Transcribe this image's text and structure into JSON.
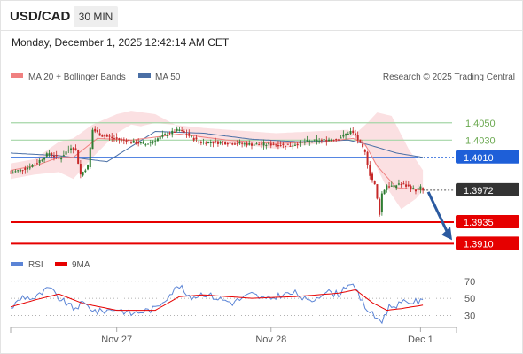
{
  "header": {
    "symbol": "USD/CAD",
    "timeframe": "30 MIN",
    "datetime": "Monday, December 1, 2025 12:42:14 AM CET"
  },
  "legend": {
    "ma20_label": "MA 20 + Bollinger Bands",
    "ma50_label": "MA 50",
    "credit": "Research © 2025 Trading Central",
    "rsi_label": "RSI",
    "ma9_label": "9MA"
  },
  "colors": {
    "ma20": "#f08080",
    "ma50": "#4a6fa5",
    "band": "#fadadd",
    "up_candle": "#2e7d32",
    "down_candle": "#c62828",
    "resistance": "#a5d6a7",
    "pivot": "#1e5fd8",
    "support": "#e60000",
    "last": "#333333",
    "arrow": "#2b5aa0",
    "rsi": "#5b84d6",
    "rsi_ma": "#e60000"
  },
  "chart_data": [
    {
      "type": "candlestick",
      "title": "USD/CAD 30 MIN",
      "x_ticks": [
        "Nov 27",
        "Nov 28",
        "Dec 1"
      ],
      "ylim": [
        1.3895,
        1.41
      ],
      "ohlc_anchors": [
        {
          "i": 0,
          "c": 1.3992
        },
        {
          "i": 6,
          "c": 1.3997
        },
        {
          "i": 10,
          "c": 1.4002
        },
        {
          "i": 16,
          "c": 1.4015
        },
        {
          "i": 20,
          "c": 1.4008
        },
        {
          "i": 25,
          "c": 1.4022
        },
        {
          "i": 27,
          "c": 1.4018
        },
        {
          "i": 29,
          "c": 1.399
        },
        {
          "i": 32,
          "c": 1.4
        },
        {
          "i": 34,
          "c": 1.4042
        },
        {
          "i": 38,
          "c": 1.4035
        },
        {
          "i": 46,
          "c": 1.403
        },
        {
          "i": 56,
          "c": 1.4025
        },
        {
          "i": 64,
          "c": 1.4036
        },
        {
          "i": 70,
          "c": 1.4042
        },
        {
          "i": 78,
          "c": 1.4028
        },
        {
          "i": 88,
          "c": 1.4027
        },
        {
          "i": 100,
          "c": 1.4025
        },
        {
          "i": 110,
          "c": 1.4025
        },
        {
          "i": 116,
          "c": 1.4024
        },
        {
          "i": 122,
          "c": 1.4028
        },
        {
          "i": 130,
          "c": 1.403
        },
        {
          "i": 136,
          "c": 1.4032
        },
        {
          "i": 141,
          "c": 1.404
        },
        {
          "i": 143,
          "c": 1.4035
        },
        {
          "i": 147,
          "c": 1.4015
        },
        {
          "i": 149,
          "c": 1.399
        },
        {
          "i": 151,
          "c": 1.3978
        },
        {
          "i": 153,
          "c": 1.3945
        },
        {
          "i": 154,
          "c": 1.3968
        },
        {
          "i": 156,
          "c": 1.3978
        },
        {
          "i": 159,
          "c": 1.3976
        },
        {
          "i": 161,
          "c": 1.398
        },
        {
          "i": 165,
          "c": 1.3976
        },
        {
          "i": 168,
          "c": 1.3972
        },
        {
          "i": 170,
          "c": 1.3975
        },
        {
          "i": 171,
          "c": 1.3972
        }
      ],
      "x_tick_index": [
        44,
        108,
        170
      ],
      "ma20": [
        [
          0,
          1.3995
        ],
        [
          10,
          1.4
        ],
        [
          20,
          1.401
        ],
        [
          26,
          1.401
        ],
        [
          36,
          1.4032
        ],
        [
          50,
          1.403
        ],
        [
          70,
          1.4037
        ],
        [
          90,
          1.403
        ],
        [
          110,
          1.4026
        ],
        [
          130,
          1.4028
        ],
        [
          142,
          1.4032
        ],
        [
          147,
          1.4025
        ],
        [
          152,
          1.4
        ],
        [
          160,
          1.3975
        ],
        [
          171,
          1.3972
        ]
      ],
      "ma50": [
        [
          0,
          1.4015
        ],
        [
          20,
          1.4012
        ],
        [
          40,
          1.4005
        ],
        [
          60,
          1.404
        ],
        [
          80,
          1.4038
        ],
        [
          100,
          1.4031
        ],
        [
          120,
          1.4028
        ],
        [
          140,
          1.403
        ],
        [
          148,
          1.4025
        ],
        [
          160,
          1.4015
        ],
        [
          171,
          1.401
        ]
      ],
      "bollinger_upper": [
        [
          0,
          1.3985
        ],
        [
          10,
          1.399
        ],
        [
          20,
          1.3993
        ],
        [
          26,
          1.3985
        ],
        [
          34,
          1.401
        ],
        [
          44,
          1.4038
        ],
        [
          50,
          1.4048
        ],
        [
          54,
          1.4046
        ],
        [
          60,
          1.405
        ],
        [
          80,
          1.4044
        ],
        [
          110,
          1.4038
        ],
        [
          140,
          1.4042
        ],
        [
          148,
          1.402
        ],
        [
          156,
          1.3975
        ],
        [
          162,
          1.395
        ],
        [
          168,
          1.3962
        ],
        [
          171,
          1.3972
        ]
      ],
      "bollinger_lower": [
        [
          0,
          1.4003
        ],
        [
          10,
          1.4008
        ],
        [
          20,
          1.4028
        ],
        [
          26,
          1.4032
        ],
        [
          34,
          1.4048
        ],
        [
          44,
          1.406
        ],
        [
          50,
          1.4064
        ],
        [
          60,
          1.406
        ],
        [
          80,
          1.403
        ],
        [
          110,
          1.402
        ],
        [
          140,
          1.403
        ],
        [
          148,
          1.405
        ],
        [
          152,
          1.4062
        ],
        [
          158,
          1.4058
        ],
        [
          165,
          1.402
        ],
        [
          171,
          1.3995
        ]
      ],
      "levels": [
        {
          "value": 1.405,
          "label": "1.4050",
          "kind": "resistance"
        },
        {
          "value": 1.403,
          "label": "1.4030",
          "kind": "resistance"
        },
        {
          "value": 1.401,
          "label": "1.4010",
          "kind": "pivot"
        },
        {
          "value": 1.3972,
          "label": "1.3972",
          "kind": "last"
        },
        {
          "value": 1.3935,
          "label": "1.3935",
          "kind": "support"
        },
        {
          "value": 1.391,
          "label": "1.3910",
          "kind": "support"
        }
      ],
      "projection": {
        "from_i": 171,
        "from": 1.3972,
        "to": 1.391
      }
    },
    {
      "type": "line",
      "title": "RSI",
      "series": [
        {
          "name": "RSI",
          "anchors": [
            [
              0,
              38
            ],
            [
              5,
              52
            ],
            [
              10,
              50
            ],
            [
              16,
              62
            ],
            [
              20,
              50
            ],
            [
              26,
              38
            ],
            [
              30,
              44
            ],
            [
              36,
              34
            ],
            [
              44,
              38
            ],
            [
              50,
              32
            ],
            [
              60,
              38
            ],
            [
              66,
              55
            ],
            [
              70,
              65
            ],
            [
              74,
              50
            ],
            [
              80,
              56
            ],
            [
              86,
              50
            ],
            [
              92,
              45
            ],
            [
              100,
              55
            ],
            [
              106,
              48
            ],
            [
              112,
              54
            ],
            [
              118,
              56
            ],
            [
              124,
              45
            ],
            [
              130,
              58
            ],
            [
              136,
              55
            ],
            [
              140,
              68
            ],
            [
              143,
              60
            ],
            [
              147,
              40
            ],
            [
              151,
              28
            ],
            [
              154,
              24
            ],
            [
              157,
              40
            ],
            [
              162,
              44
            ],
            [
              166,
              46
            ],
            [
              171,
              46
            ]
          ]
        },
        {
          "name": "9MA",
          "anchors": [
            [
              0,
              40
            ],
            [
              10,
              48
            ],
            [
              20,
              55
            ],
            [
              30,
              44
            ],
            [
              44,
              36
            ],
            [
              60,
              36
            ],
            [
              70,
              52
            ],
            [
              80,
              54
            ],
            [
              100,
              50
            ],
            [
              118,
              52
            ],
            [
              136,
              56
            ],
            [
              143,
              60
            ],
            [
              150,
              45
            ],
            [
              156,
              36
            ],
            [
              162,
              38
            ],
            [
              171,
              42
            ]
          ]
        }
      ],
      "yticks": [
        70,
        50,
        30
      ],
      "ylim": [
        20,
        75
      ]
    }
  ]
}
